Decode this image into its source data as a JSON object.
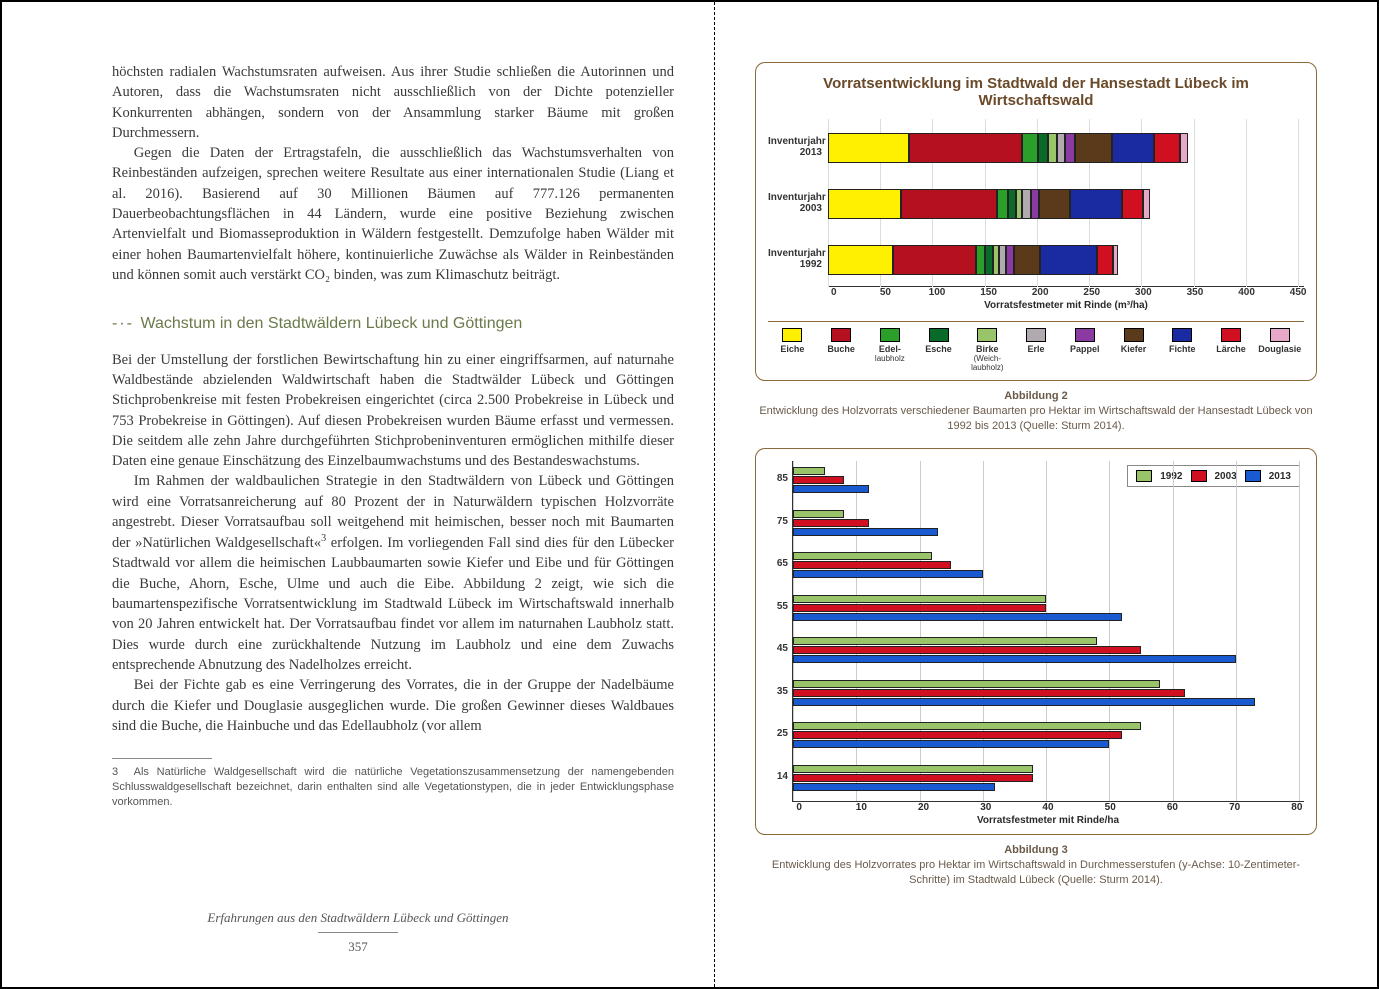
{
  "left": {
    "para1": "höchsten radialen Wachstumsraten aufweisen. Aus ihrer Studie schließen die Autorinnen und Autoren, dass die Wachstumsraten nicht ausschließlich von der Dichte potenzieller Konkurrenten abhängen, sondern von der Ansammlung starker Bäume mit großen Durchmessern.",
    "para2": "Gegen die Daten der Ertragstafeln, die ausschließlich das Wachstumsverhalten von Reinbeständen aufzeigen, sprechen weitere Resultate aus einer internationalen Studie (Liang et al. 2016). Basierend auf 30 Millionen Bäumen auf 777.126 permanenten Dauerbeobachtungsflächen in 44 Ländern, wurde eine positive Beziehung zwischen Artenvielfalt und Biomasseproduktion in Wäldern festgestellt. Demzufolge haben Wälder mit einer hohen Baumartenvielfalt höhere, kontinuierliche Zuwächse als Wälder in Reinbeständen und können somit auch verstärkt CO₂ binden, was zum Klimaschutz beiträgt.",
    "heading": "Wachstum in den Stadtwäldern Lübeck und Göttingen",
    "para3": "Bei der Umstellung der forstlichen Bewirtschaftung hin zu einer eingriffsarmen, auf naturnahe Waldbestände abzielenden Waldwirtschaft haben die Stadtwälder Lübeck und Göttingen Stichprobenkreise mit festen Probekreisen eingerichtet (circa 2.500 Probekreise in Lübeck und 753 Probekreise in Göttingen). Auf diesen Probekreisen wurden Bäume erfasst und vermessen. Die seitdem alle zehn Jahre durchgeführten Stichprobeninventuren ermöglichen mithilfe dieser Daten eine genaue Einschätzung des Einzelbaumwachstums und des Bestandeswachstums.",
    "para4a": "Im Rahmen der waldbaulichen Strategie in den Stadtwäldern von Lübeck und Göttingen wird eine Vorratsanreicherung auf 80 Prozent der in Naturwäldern typischen Holzvorräte angestrebt. Dieser Vorratsaufbau soll weitgehend mit heimischen, besser noch mit Baumarten der »Natürlichen Waldgesellschaft«",
    "para4b": " erfolgen. Im vorliegenden Fall sind dies für den Lübecker Stadtwald vor allem die heimischen Laubbaumarten sowie Kiefer und Eibe und für Göttingen die Buche, Ahorn, Esche, Ulme und auch die Eibe. Abbildung 2 zeigt, wie sich die baumartenspezifische Vorratsentwicklung im Stadtwald Lübeck im Wirtschaftswald innerhalb von 20 Jahren entwickelt hat. Der Vorratsaufbau findet vor allem im naturnahen Laubholz statt. Dies wurde durch eine zurückhaltende Nutzung im Laubholz und eine dem Zuwachs entsprechende Abnutzung des Nadelholzes erreicht.",
    "para5": "Bei der Fichte gab es eine Verringerung des Vorrates, die in der Gruppe der Nadelbäume durch die Kiefer und Douglasie ausgeglichen wurde. Die großen Gewinner dieses Waldbaues sind die Buche, die Hainbuche und das Edellaubholz (vor allem",
    "footnote_num": "3",
    "footnote": "Als Natürliche Waldgesellschaft wird die natürliche Vegetationszusammensetzung der namengebenden Schlusswaldgesellschaft bezeichnet, darin enthalten sind alle Vegetationstypen, die in jeder Entwicklungsphase vorkommen.",
    "running_title": "Erfahrungen aus den Stadtwäldern Lübeck und Göttingen",
    "page_num": "357"
  },
  "chart1": {
    "type": "stacked_horizontal_bar",
    "title": "Vorratsentwicklung im Stadtwald der Hansestadt Lübeck im Wirtschaftswald",
    "xlabel": "Vorratsfestmeter mit Rinde (m³/ha)",
    "xlim": [
      0,
      450
    ],
    "xtick_step": 50,
    "xticks": [
      "0",
      "50",
      "100",
      "150",
      "200",
      "250",
      "300",
      "350",
      "400",
      "450"
    ],
    "background": "#ffffff",
    "border_color": "#8a6a3a",
    "title_color": "#6a4a2a",
    "title_fontsize": 15,
    "label_fontsize": 10,
    "categories": [
      {
        "label": "Inventurjahr",
        "sub": "2013"
      },
      {
        "label": "Inventurjahr",
        "sub": "2003"
      },
      {
        "label": "Inventurjahr",
        "sub": "1992"
      }
    ],
    "series": [
      {
        "name": "Eiche",
        "color": "#ffef00",
        "sub": ""
      },
      {
        "name": "Buche",
        "color": "#b51020",
        "sub": ""
      },
      {
        "name": "Edel-",
        "color": "#2aa02a",
        "sub": "laubholz"
      },
      {
        "name": "Esche",
        "color": "#0a6a2a",
        "sub": ""
      },
      {
        "name": "Birke",
        "color": "#9ac46a",
        "sub": "(Weich-\nlaubholz)"
      },
      {
        "name": "Erle",
        "color": "#b0aab0",
        "sub": ""
      },
      {
        "name": "Pappel",
        "color": "#8a3aa0",
        "sub": ""
      },
      {
        "name": "Kiefer",
        "color": "#5a3a1a",
        "sub": ""
      },
      {
        "name": "Fichte",
        "color": "#1a2aa0",
        "sub": ""
      },
      {
        "name": "Lärche",
        "color": "#d01020",
        "sub": ""
      },
      {
        "name": "Douglasie",
        "color": "#e8a8c8",
        "sub": ""
      }
    ],
    "data": {
      "2013": [
        78,
        108,
        15,
        10,
        8,
        8,
        10,
        35,
        40,
        25,
        8
      ],
      "2003": [
        70,
        92,
        10,
        8,
        6,
        8,
        8,
        30,
        50,
        20,
        6
      ],
      "1992": [
        62,
        80,
        8,
        8,
        6,
        6,
        8,
        25,
        55,
        15,
        5
      ]
    },
    "caption_ab": "Abbildung 2",
    "caption": "Entwicklung des Holzvorrats verschiedener Baumarten pro Hektar im Wirtschaftswald der Hansestadt Lübeck von 1992 bis 2013 (Quelle: Sturm 2014)."
  },
  "chart2": {
    "type": "grouped_horizontal_bar",
    "xlabel": "Vorratsfestmeter mit Rinde/ha",
    "xlim": [
      0,
      80
    ],
    "xtick_step": 10,
    "xticks": [
      "0",
      "10",
      "20",
      "30",
      "40",
      "50",
      "60",
      "70",
      "80"
    ],
    "background": "#ffffff",
    "border_color": "#8a6a3a",
    "grid_color": "#cccccc",
    "legend": [
      "1992",
      "2003",
      "2013"
    ],
    "legend_colors": [
      "#9ac46a",
      "#d01020",
      "#1a5ad0"
    ],
    "ylabels": [
      "85",
      "75",
      "65",
      "55",
      "45",
      "35",
      "25",
      "14"
    ],
    "data": {
      "85": [
        5,
        8,
        12
      ],
      "75": [
        8,
        12,
        23
      ],
      "65": [
        22,
        25,
        30
      ],
      "55": [
        40,
        40,
        52
      ],
      "45": [
        48,
        55,
        70
      ],
      "35": [
        58,
        62,
        73
      ],
      "25": [
        55,
        52,
        50
      ],
      "14": [
        38,
        38,
        32
      ]
    },
    "caption_ab": "Abbildung 3",
    "caption": "Entwicklung des Holzvorrates pro Hektar im Wirtschaftswald in Durchmesserstufen (y-Achse: 10-Zentimeter-Schritte) im Stadtwald Lübeck (Quelle: Sturm 2014)."
  }
}
